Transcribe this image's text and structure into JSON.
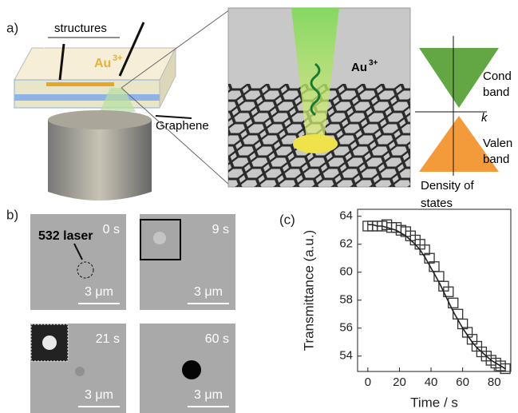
{
  "panel_a": {
    "label": "a)",
    "structures": "structures",
    "ion": "Au",
    "ion_charge": "3+",
    "graphene": "Graphene",
    "inset_ion": "Au",
    "inset_ion_charge": "3+",
    "conduction": [
      "Cond",
      "band"
    ],
    "valence": [
      "Valen",
      "band"
    ],
    "k": "k",
    "dos": [
      "Density of",
      "states"
    ]
  },
  "panel_b": {
    "label": "b)",
    "laser": "532 laser",
    "frames": [
      {
        "time": "0 s",
        "scale": "3 μm"
      },
      {
        "time": "9 s",
        "scale": "3 μm"
      },
      {
        "time": "21 s",
        "scale": "3 μm"
      },
      {
        "time": "60 s",
        "scale": "3 μm"
      }
    ]
  },
  "chart_data": {
    "type": "scatter",
    "panel_label": "(c)",
    "x_label": "Time / s",
    "y_label": "Transmittance (a.u.)",
    "x": [
      0,
      3,
      6,
      9,
      12,
      15,
      18,
      21,
      24,
      27,
      30,
      33,
      36,
      39,
      42,
      45,
      48,
      51,
      54,
      57,
      60,
      63,
      66,
      69,
      72,
      75,
      78,
      81,
      84,
      87
    ],
    "series": [
      {
        "color": "#333333",
        "values": [
          63.3,
          63.3,
          63.3,
          63.3,
          63.4,
          63.2,
          63.2,
          63.0,
          62.9,
          62.6,
          62.3,
          62.0,
          61.6,
          61.0,
          60.4,
          59.7,
          59.0,
          58.6,
          57.8,
          57.0,
          56.3,
          55.7,
          55.2,
          54.7,
          54.3,
          54.0,
          53.7,
          53.5,
          53.3,
          53.1
        ]
      },
      {
        "color": "#222222",
        "values": [
          63.4,
          63.4,
          63.3,
          63.3,
          63.2,
          63.1,
          63.0,
          62.8,
          62.6,
          62.3,
          62.0,
          61.6,
          61.1,
          60.5,
          59.9,
          59.3,
          58.6,
          57.9,
          57.2,
          56.6,
          56.0,
          55.5,
          55.0,
          54.6,
          54.3,
          54.0,
          53.7,
          53.5,
          53.3,
          53.1
        ]
      }
    ],
    "xlim": [
      -6.5,
      90.5
    ],
    "ylim": [
      52.9,
      64.5
    ],
    "xticks": [
      0,
      20,
      40,
      60,
      80
    ],
    "yticks": [
      54,
      56,
      58,
      60,
      62,
      64
    ]
  }
}
